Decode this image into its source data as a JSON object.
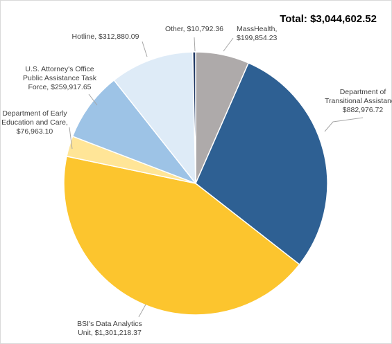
{
  "chart_data": {
    "type": "pie",
    "title": "Total: $3,044,602.52",
    "start_angle_deg": 0,
    "direction": "clockwise",
    "slices": [
      {
        "name": "MassHealth",
        "value": 199854.23,
        "label_lines": [
          "MassHealth,",
          "$199,854.23"
        ],
        "color": "#aeaaaa"
      },
      {
        "name": "Department of Transitional Assistance",
        "value": 882976.72,
        "label_lines": [
          "Department of",
          "Transitional Assistance,",
          "$882,976.72"
        ],
        "color": "#2e6093"
      },
      {
        "name": "BSI's Data Analytics Unit",
        "value": 1301218.37,
        "label_lines": [
          "BSI's Data Analytics",
          "Unit, $1,301,218.37"
        ],
        "color": "#fcc52e"
      },
      {
        "name": "Department of Early Education and Care",
        "value": 76963.1,
        "label_lines": [
          "Department of Early",
          "Education and Care,",
          "$76,963.10"
        ],
        "color": "#ffe597"
      },
      {
        "name": "U.S. Attorney's Office Public Assistance Task Force",
        "value": 259917.65,
        "label_lines": [
          "U.S. Attorney's Office",
          "Public Assistance Task",
          "Force, $259,917.65"
        ],
        "color": "#9dc3e6"
      },
      {
        "name": "Hotline",
        "value": 312880.09,
        "label_lines": [
          "Hotline, $312,880.09"
        ],
        "color": "#deebf7"
      },
      {
        "name": "Other",
        "value": 10792.36,
        "label_lines": [
          "Other, $10,792.36"
        ],
        "color": "#1f3864"
      }
    ]
  }
}
